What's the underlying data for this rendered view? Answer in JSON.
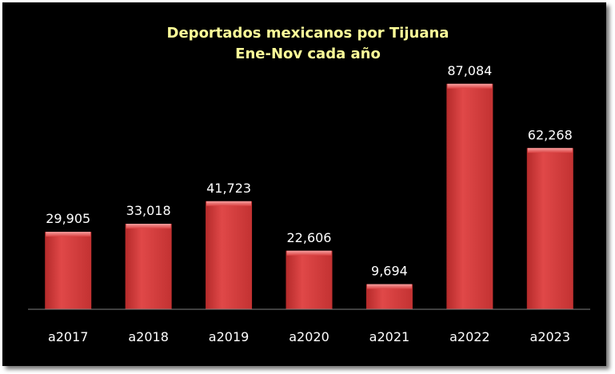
{
  "chart_data": {
    "type": "bar",
    "title": [
      "Deportados  mexicanos por Tijuana",
      "Ene-Nov cada año"
    ],
    "categories": [
      "a2017",
      "a2018",
      "a2019",
      "a2020",
      "a2021",
      "a2022",
      "a2023"
    ],
    "values": [
      29905,
      33018,
      41723,
      22606,
      9694,
      87084,
      62268
    ],
    "data_labels": [
      "29,905",
      "33,018",
      "41,723",
      "22,606",
      "9,694",
      "87,084",
      "62,268"
    ],
    "xlabel": "",
    "ylabel": "",
    "ylim": [
      0,
      100000
    ],
    "grid": false,
    "legend": "none",
    "colors": {
      "background": "#000000",
      "bar": "#d93a3a",
      "bar_highlight": "#f07a7a",
      "bar_shadow": "#a82222",
      "title": "#ffff99",
      "text": "#ffffff",
      "axis": "#7f7f7f"
    }
  }
}
